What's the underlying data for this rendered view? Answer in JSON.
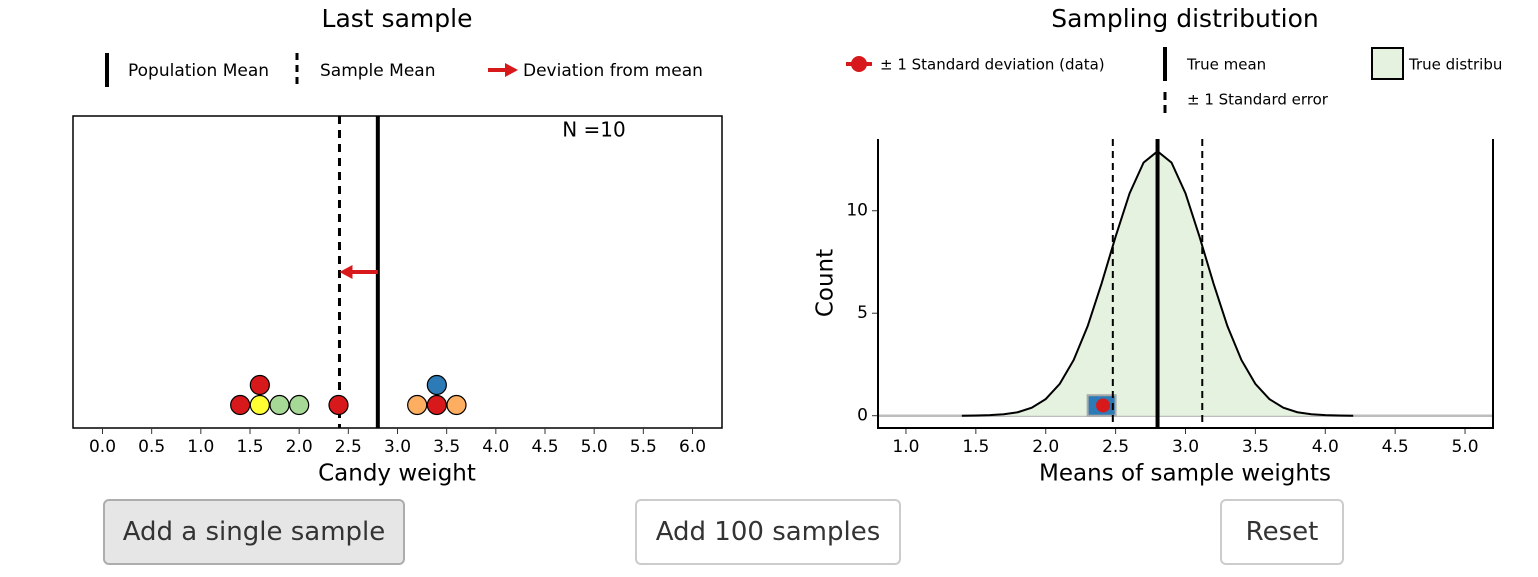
{
  "chart_data": [
    {
      "type": "dotplot",
      "title": "Last sample",
      "x_label": "Candy weight",
      "legend": [
        "Population Mean",
        "Sample Mean",
        "Deviation from mean"
      ],
      "annotation": "N =10",
      "values": [
        1.4,
        1.6,
        1.6,
        1.8,
        2.0,
        2.4,
        3.2,
        3.4,
        3.4,
        3.6
      ],
      "colors": [
        "#d7191c",
        "#ffff33",
        "#d7191c",
        "#a6d996",
        "#a6d996",
        "#d7191c",
        "#fdae61",
        "#d7191c",
        "#2c7bb6",
        "#fdae61"
      ],
      "population_mean": 2.8,
      "sample_mean": 2.41,
      "arrow_color": "#d7191c",
      "xlim": [
        -0.3,
        6.3
      ],
      "xticks": [
        {
          "value": 0,
          "label": "0.0"
        },
        0.5,
        {
          "value": 1,
          "label": "1.0"
        },
        1.5,
        {
          "value": 2,
          "label": "2.0"
        },
        2.5,
        {
          "value": 3,
          "label": "3.0"
        },
        3.5,
        {
          "value": 4,
          "label": "4.0"
        },
        4.5,
        {
          "value": 5,
          "label": "5.0"
        },
        5.5,
        {
          "value": 6,
          "label": "6.0"
        }
      ]
    },
    {
      "type": "area",
      "title": "Sampling distribution",
      "x_label": "Means of sample weights",
      "y_label": "Count",
      "legend": [
        "± 1 Standard deviation (data)",
        "True mean",
        "True distribu",
        "± 1 Standard error"
      ],
      "x": [
        1.4,
        1.5,
        1.6,
        1.7,
        1.8,
        1.9,
        2.0,
        2.1,
        2.2,
        2.3,
        2.4,
        2.5,
        2.6,
        2.7,
        2.8,
        2.9,
        3.0,
        3.1,
        3.2,
        3.3,
        3.4,
        3.5,
        3.6,
        3.7,
        3.8,
        3.9,
        4.0,
        4.1,
        4.2
      ],
      "values": [
        0.0,
        0.01,
        0.03,
        0.07,
        0.17,
        0.39,
        0.81,
        1.55,
        2.72,
        4.37,
        6.46,
        8.74,
        10.85,
        12.35,
        12.9,
        12.35,
        10.85,
        8.74,
        6.46,
        4.37,
        2.72,
        1.55,
        0.81,
        0.39,
        0.17,
        0.07,
        0.03,
        0.01,
        0.0
      ],
      "fill": "#e5f2e0",
      "true_mean": 2.8,
      "standard_error_lines": [
        2.48,
        3.12
      ],
      "histogram": {
        "bins": [
          2.3,
          2.5
        ],
        "counts": [
          1
        ],
        "color": "#2c7bb6"
      },
      "last_mean": {
        "x": 2.41,
        "y": 0.5,
        "color": "#d7191c"
      },
      "xlim": [
        0.8,
        5.2
      ],
      "ylim": [
        -0.6,
        13.5
      ],
      "xticks": [
        {
          "value": 1,
          "label": "1.0"
        },
        1.5,
        {
          "value": 2,
          "label": "2.0"
        },
        2.5,
        {
          "value": 3,
          "label": "3.0"
        },
        3.5,
        {
          "value": 4,
          "label": "4.0"
        },
        4.5,
        {
          "value": 5,
          "label": "5.0"
        }
      ],
      "yticks": [
        0,
        5,
        10
      ]
    }
  ],
  "buttons": [
    "Add a single sample",
    "Add 100 samples",
    "Reset"
  ]
}
